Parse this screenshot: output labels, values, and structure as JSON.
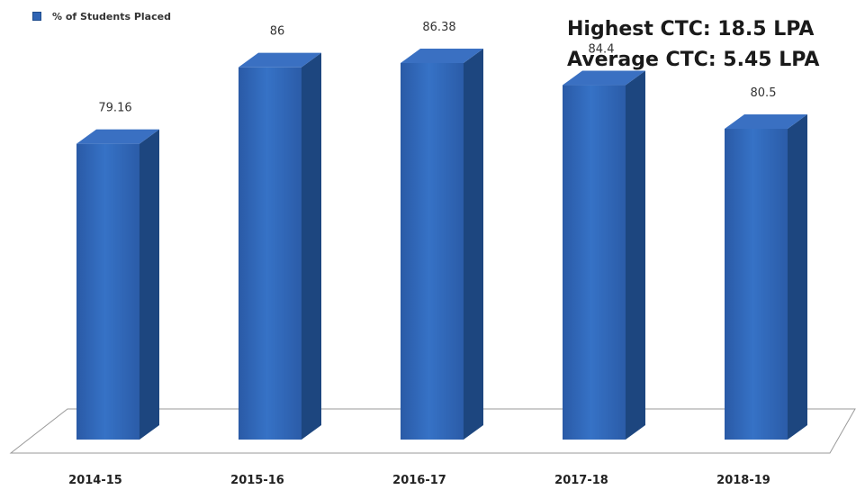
{
  "legend": {
    "label": "% of Students Placed"
  },
  "ctc": {
    "highest": "Highest CTC: 18.5 LPA",
    "average": "Average CTC: 5.45 LPA"
  },
  "chart_data": {
    "type": "bar",
    "style": "3d-column",
    "categories": [
      "2014-15",
      "2015-16",
      "2016-17",
      "2017-18",
      "2018-19"
    ],
    "series": [
      {
        "name": "% of Students Placed",
        "values": [
          79.16,
          86,
          86.38,
          84.4,
          80.5
        ],
        "color": "#2f64b4"
      }
    ],
    "data_labels": [
      "79.16",
      "86",
      "86.38",
      "84.4",
      "80.5"
    ],
    "title": "",
    "xlabel": "",
    "ylabel": "",
    "legend_position": "top-left",
    "grid": false
  },
  "colors": {
    "bar_front": "#2f64b4",
    "bar_side": "#1d467f",
    "bar_top": "#3a70c2"
  }
}
